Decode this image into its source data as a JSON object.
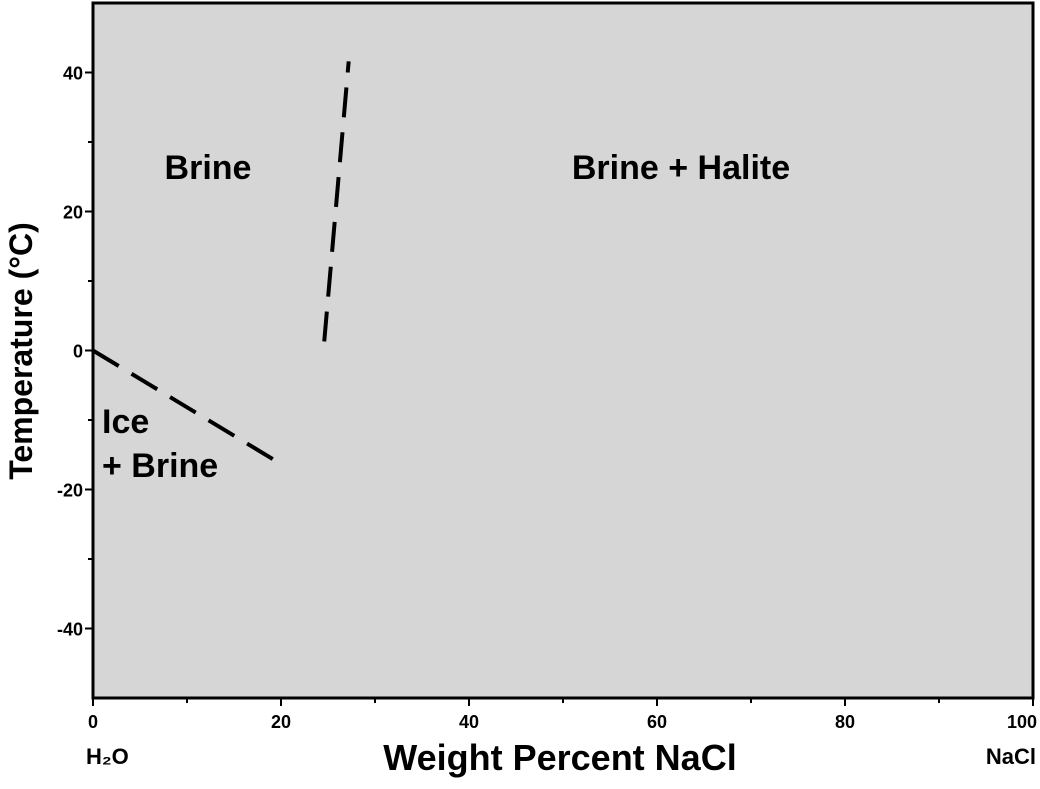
{
  "chart_data": {
    "type": "line",
    "xlabel": "Weight Percent NaCl",
    "ylabel": "Temperature (°C)",
    "xlim": [
      0,
      100
    ],
    "ylim": [
      -50,
      50
    ],
    "xticks": [
      0,
      20,
      40,
      60,
      80,
      100
    ],
    "yticks": [
      -40,
      -20,
      0,
      20,
      40
    ],
    "xminorticks": [
      10,
      30,
      50,
      70,
      90
    ],
    "yminorticks": [
      -30,
      -10,
      10,
      30
    ],
    "series": [
      {
        "color": "#000000",
        "x": [
          0,
          20.2
        ],
        "values": [
          0,
          -16.5
        ]
      },
      {
        "color": "#000000",
        "x": [
          24.6,
          27.2
        ],
        "values": [
          1.3,
          41.6
        ]
      }
    ],
    "annotations": [
      "Brine",
      "Brine + Halite",
      "Ice",
      "+ Brine"
    ],
    "x_end_labels": [
      "H₂O",
      "NaCl"
    ]
  }
}
